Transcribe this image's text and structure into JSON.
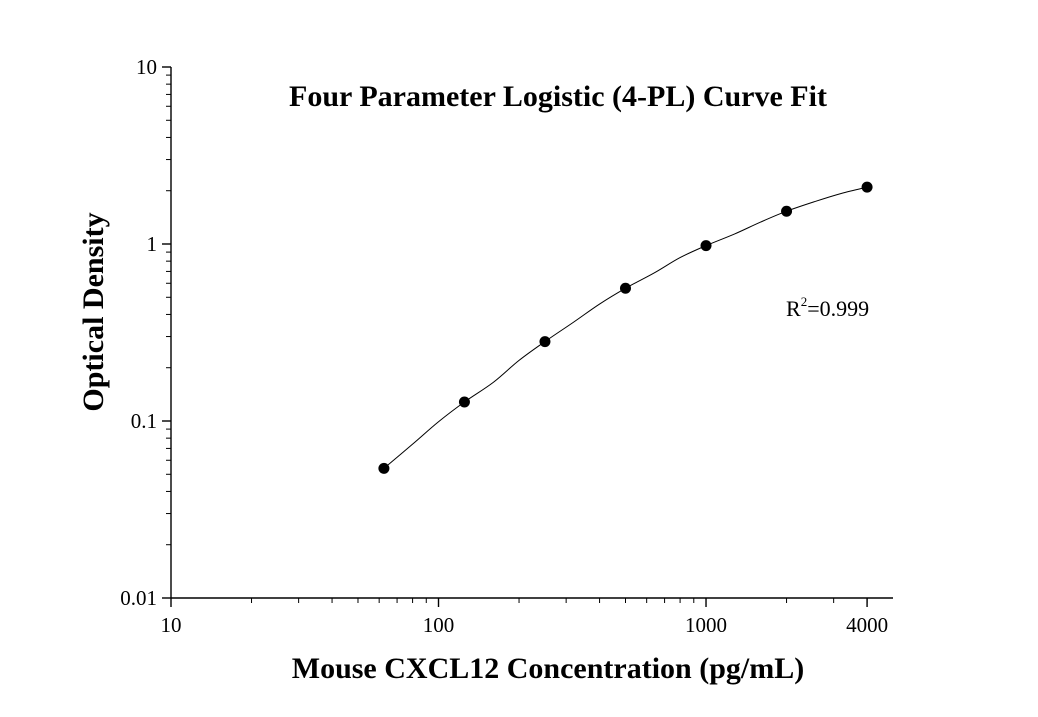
{
  "chart_data": {
    "type": "scatter",
    "title": "Four Parameter Logistic (4-PL) Curve Fit",
    "xlabel": "Mouse CXCL12 Concentration (pg/mL)",
    "ylabel": "Optical Density",
    "x_scale": "log",
    "y_scale": "log",
    "xlim": [
      10,
      5000
    ],
    "ylim": [
      0.01,
      10
    ],
    "x_ticks": [
      {
        "value": 10,
        "label": "10"
      },
      {
        "value": 100,
        "label": "100"
      },
      {
        "value": 1000,
        "label": "1000"
      },
      {
        "value": 4000,
        "label": "4000"
      }
    ],
    "y_ticks": [
      {
        "value": 0.01,
        "label": "0.01"
      },
      {
        "value": 0.1,
        "label": "0.1"
      },
      {
        "value": 1,
        "label": "1"
      },
      {
        "value": 10,
        "label": "10"
      }
    ],
    "grid": false,
    "legend": "none",
    "points": {
      "x": [
        62.5,
        125,
        250,
        500,
        1000,
        2000,
        4000
      ],
      "y": [
        0.054,
        0.128,
        0.281,
        0.562,
        0.979,
        1.532,
        2.097
      ]
    },
    "fit_curve": {
      "model": "4-PL",
      "x": [
        62.5,
        80,
        100,
        125,
        160,
        200,
        250,
        320,
        400,
        500,
        640,
        800,
        1000,
        1280,
        1600,
        2000,
        2560,
        3200,
        4000
      ],
      "y": [
        0.054,
        0.074,
        0.099,
        0.128,
        0.165,
        0.22,
        0.281,
        0.362,
        0.458,
        0.562,
        0.686,
        0.838,
        0.979,
        1.14,
        1.33,
        1.532,
        1.74,
        1.93,
        2.097
      ]
    },
    "annotation": {
      "base": "R",
      "superscript": "2",
      "rest": "=0.999",
      "r_squared": 0.999
    },
    "colors": {
      "axis": "#000000",
      "marker": "#000000",
      "curve": "#000000"
    }
  }
}
